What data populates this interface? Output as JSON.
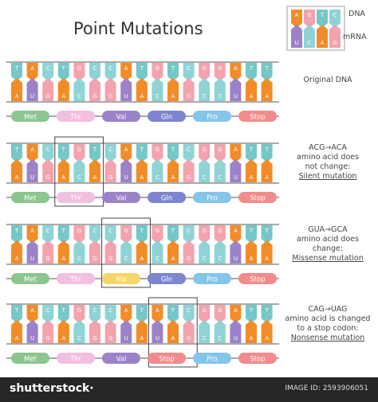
{
  "title": "Point Mutations",
  "legend": {
    "dna_label": "DNA",
    "mrna_label": "mRNA",
    "dna_letters": [
      "A",
      "G",
      "T",
      "C"
    ],
    "mrna_letters": [
      "U",
      "C",
      "A",
      "G"
    ]
  },
  "colors": {
    "A": "#f28c28",
    "T": "#76c7c8",
    "U": "#9b82c9",
    "G": "#f2a3ae",
    "C": "#8fd3d6",
    "amino": {
      "Met": "#8bc58f",
      "Thr": "#f3bfe0",
      "Val": "#9c82c9",
      "Gln": "#7d85d1",
      "Pro": "#86c5ea",
      "Stop": "#f28b8b",
      "Ala": "#f5d66b"
    },
    "strand_line": "#555555",
    "highlight_box": "#444444"
  },
  "rows": [
    {
      "dna": [
        "T",
        "A",
        "C",
        "T",
        "G",
        "C",
        "C",
        "A",
        "T",
        "G",
        "T",
        "C",
        "G",
        "G",
        "A",
        "T",
        "T"
      ],
      "mrna": [
        "A",
        "U",
        "G",
        "A",
        "C",
        "G",
        "G",
        "U",
        "A",
        "C",
        "A",
        "G",
        "C",
        "C",
        "U",
        "A",
        "A"
      ],
      "amino_acids": [
        "Met",
        "Thr",
        "Val",
        "Gln",
        "Pro",
        "Stop"
      ],
      "label_lines": [
        "Original DNA"
      ]
    },
    {
      "dna": [
        "T",
        "A",
        "C",
        "T",
        "G",
        "T",
        "C",
        "A",
        "T",
        "G",
        "T",
        "C",
        "G",
        "G",
        "A",
        "T",
        "T"
      ],
      "mrna": [
        "A",
        "U",
        "G",
        "A",
        "C",
        "A",
        "G",
        "U",
        "A",
        "C",
        "A",
        "G",
        "C",
        "C",
        "U",
        "A",
        "A"
      ],
      "amino_acids": [
        "Met",
        "Thr",
        "Val",
        "Gln",
        "Pro",
        "Stop"
      ],
      "highlight_codon": 1,
      "label_lines": [
        "ACG→ACA",
        "amino acid does",
        "not change:",
        "Silent mutation"
      ]
    },
    {
      "dna": [
        "T",
        "A",
        "C",
        "T",
        "G",
        "C",
        "C",
        "G",
        "T",
        "G",
        "T",
        "C",
        "G",
        "G",
        "A",
        "T",
        "T"
      ],
      "mrna": [
        "A",
        "U",
        "G",
        "A",
        "C",
        "G",
        "G",
        "C",
        "A",
        "C",
        "A",
        "G",
        "C",
        "C",
        "U",
        "A",
        "A"
      ],
      "amino_acids": [
        "Met",
        "Thr",
        "Ala",
        "Gln",
        "Pro",
        "Stop"
      ],
      "highlight_codon": 2,
      "label_lines": [
        "GUA→GCA",
        "amino acid does",
        "change:",
        "Missense mutation"
      ]
    },
    {
      "dna": [
        "T",
        "A",
        "C",
        "T",
        "G",
        "C",
        "C",
        "A",
        "T",
        "A",
        "T",
        "C",
        "G",
        "G",
        "A",
        "T",
        "T"
      ],
      "mrna": [
        "A",
        "U",
        "G",
        "A",
        "C",
        "G",
        "G",
        "U",
        "A",
        "U",
        "A",
        "G",
        "C",
        "C",
        "U",
        "A",
        "A"
      ],
      "amino_acids": [
        "Met",
        "Thr",
        "Val",
        "Stop",
        "Pro",
        "Stop"
      ],
      "highlight_codon": 3,
      "label_lines": [
        "CAG→UAG",
        "amino acid is changed",
        "to a stop codon:",
        "Nonsense mutation"
      ]
    }
  ],
  "footer": {
    "brand": "shutterstock·",
    "image_id": "IMAGE ID: 2593906051"
  }
}
